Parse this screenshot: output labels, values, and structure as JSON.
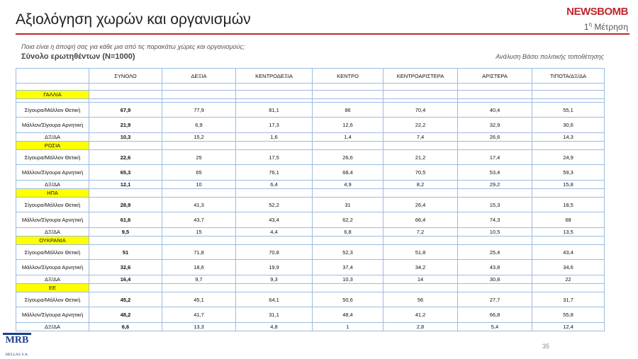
{
  "header": {
    "title": "Αξιολόγηση χωρών και οργανισμών",
    "logo": "NEWSBOMB",
    "measurement_number": "1",
    "measurement_suffix": "η",
    "measurement_label": "Μέτρηση",
    "question": "Ποια είναι η άποψή σας για κάθε μια από τις παρακάτω χώρες και οργανισμούς;",
    "base": "Σύνολο ερωτηθέντων (Ν=1000)",
    "analysis": "Ανάλυση Βάσει πολιτικής τοποθέτησης"
  },
  "table": {
    "columns": [
      "ΣΥΝΟΛΟ",
      "ΔΕΞΙΑ",
      "ΚΕΝΤΡΟΔΕΞΙΑ",
      "ΚΕΝΤΡΟ",
      "ΚΕΝΤΡΟΑΡΙΣΤΕΡΑ",
      "ΑΡΙΣΤΕΡΑ",
      "ΤΙΠΟΤΑ/ΔΞ/ΔΑ"
    ],
    "groups": [
      {
        "name": "ΓΑΛΛΙΑ",
        "rows": [
          [
            "Σίγουρα/Μάλλον Θετική",
            "67,9",
            "77,9",
            "81,1",
            "86",
            "70,4",
            "40,4",
            "55,1"
          ],
          [
            "Μάλλον/Σίγουρα Αρνητική",
            "21,9",
            "6,9",
            "17,3",
            "12,6",
            "22,2",
            "32,9",
            "30,6"
          ],
          [
            "ΔΞ/ΔΑ",
            "10,3",
            "15,2",
            "1,6",
            "1,4",
            "7,4",
            "26,6",
            "14,3"
          ]
        ]
      },
      {
        "name": "ΡΩΣΙΑ",
        "rows": [
          [
            "Σίγουρα/Μάλλον Θετική",
            "22,6",
            "25",
            "17,5",
            "26,6",
            "21,2",
            "17,4",
            "24,9"
          ],
          [
            "Μάλλον/Σίγουρα Αρνητική",
            "65,3",
            "65",
            "76,1",
            "68,4",
            "70,5",
            "53,4",
            "59,3"
          ],
          [
            "ΔΞ/ΔΑ",
            "12,1",
            "10",
            "6,4",
            "4,9",
            "8,2",
            "29,2",
            "15,8"
          ]
        ]
      },
      {
        "name": "ΗΠΑ",
        "rows": [
          [
            "Σίγουρα/Μάλλον Θετική",
            "28,9",
            "41,3",
            "52,2",
            "31",
            "26,4",
            "15,3",
            "18,5"
          ],
          [
            "Μάλλον/Σίγουρα Αρνητική",
            "61,6",
            "43,7",
            "43,4",
            "62,2",
            "66,4",
            "74,3",
            "68"
          ],
          [
            "ΔΞ/ΔΑ",
            "9,5",
            "15",
            "4,4",
            "6,8",
            "7,2",
            "10,5",
            "13,5"
          ]
        ]
      },
      {
        "name": "ΟΥΚΡΑΝΙΑ",
        "rows": [
          [
            "Σίγουρα/Μάλλον Θετική",
            "51",
            "71,8",
            "70,8",
            "52,3",
            "51,8",
            "25,4",
            "43,4"
          ],
          [
            "Μάλλον/Σίγουρα Αρνητική",
            "32,6",
            "18,6",
            "19,9",
            "37,4",
            "34,2",
            "43,8",
            "34,6"
          ],
          [
            "ΔΞ/ΔΑ",
            "16,4",
            "9,7",
            "9,3",
            "10,3",
            "14",
            "30,8",
            "22"
          ]
        ]
      },
      {
        "name": "ΕΕ",
        "rows": [
          [
            "Σίγουρα/Μάλλον Θετική",
            "45,2",
            "45,1",
            "64,1",
            "50,6",
            "56",
            "27,7",
            "31,7"
          ],
          [
            "Μάλλον/Σίγουρα Αρνητική",
            "48,2",
            "41,7",
            "31,1",
            "48,4",
            "41,2",
            "66,8",
            "55,8"
          ],
          [
            "ΔΞ/ΔΑ",
            "6,6",
            "13,3",
            "4,8",
            "1",
            "2,8",
            "5,4",
            "12,4"
          ]
        ]
      }
    ]
  },
  "footer": {
    "page": "35",
    "mrb": "MRB",
    "mrb_sub": "HELLAS S.A."
  }
}
